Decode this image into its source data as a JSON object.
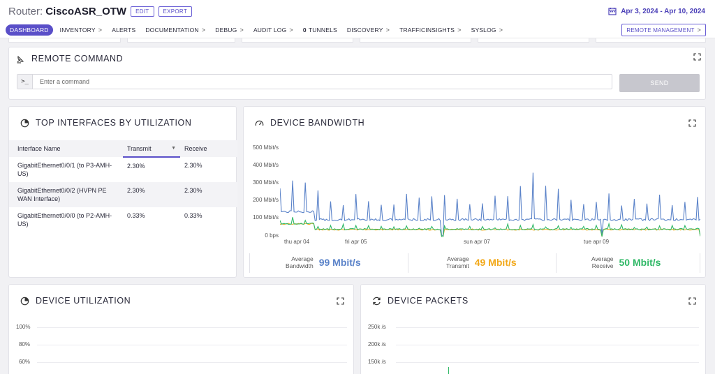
{
  "header": {
    "prefix": "Router:",
    "name": "CiscoASR_OTW",
    "edit_label": "EDIT",
    "export_label": "EXPORT",
    "date_range": "Apr 3, 2024 - Apr 10, 2024"
  },
  "nav": {
    "items": [
      {
        "label": "DASHBOARD"
      },
      {
        "label": "INVENTORY",
        "chevron": ">"
      },
      {
        "label": "ALERTS"
      },
      {
        "label": "DOCUMENTATION",
        "chevron": ">"
      },
      {
        "label": "DEBUG",
        "chevron": ">"
      },
      {
        "label": "AUDIT LOG",
        "chevron": ">"
      },
      {
        "count": "0",
        "label": "TUNNELS"
      },
      {
        "label": "DISCOVERY",
        "chevron": ">"
      },
      {
        "label": "TRAFFICINSIGHTS",
        "chevron": ">"
      },
      {
        "label": "SYSLOG",
        "chevron": ">"
      }
    ],
    "remote_management": "REMOTE MANAGEMENT",
    "remote_management_chevron": ">"
  },
  "remote_command": {
    "title": "REMOTE COMMAND",
    "prompt": ">_",
    "placeholder": "Enter a command",
    "send_label": "SEND"
  },
  "top_interfaces": {
    "title": "TOP INTERFACES BY UTILIZATION",
    "columns": [
      "Interface Name",
      "Transmit",
      "Receive"
    ],
    "rows": [
      {
        "name": "GigabitEthernet0/0/1 (to P3-AMH-US)",
        "transmit": "2.30%",
        "receive": "2.30%"
      },
      {
        "name": "GigabitEthernet0/0/2 (HVPN PE WAN Interface)",
        "transmit": "2.30%",
        "receive": "2.30%"
      },
      {
        "name": "GigabitEthernet0/0/0 (to P2-AMH-US)",
        "transmit": "0.33%",
        "receive": "0.33%"
      }
    ]
  },
  "device_bandwidth": {
    "title": "DEVICE BANDWIDTH",
    "stats": [
      {
        "label_line1": "Average",
        "label_line2": "Bandwidth",
        "value": "99 Mbit/s",
        "color": "#5b83c9"
      },
      {
        "label_line1": "Average",
        "label_line2": "Transmit",
        "value": "49 Mbit/s",
        "color": "#f2a818"
      },
      {
        "label_line1": "Average",
        "label_line2": "Receive",
        "value": "50 Mbit/s",
        "color": "#2fb866"
      }
    ]
  },
  "device_utilization": {
    "title": "DEVICE UTILIZATION",
    "y_ticks": [
      "100%",
      "80%",
      "60%"
    ]
  },
  "device_packets": {
    "title": "DEVICE PACKETS",
    "y_ticks": [
      "250k /s",
      "200k /s",
      "150k /s"
    ]
  },
  "chart_data": {
    "type": "line",
    "title": "DEVICE BANDWIDTH",
    "ylim": [
      0,
      500
    ],
    "y_ticks": [
      "0 bps",
      "100 Mbit/s",
      "200 Mbit/s",
      "300 Mbit/s",
      "400 Mbit/s",
      "500 Mbit/s"
    ],
    "x_ticks": [
      "thu apr 04",
      "fri apr 05",
      "sun apr 07",
      "tue apr 09"
    ],
    "grid": false,
    "colors": {
      "bandwidth": "#5b83c9",
      "transmit": "#f2a818",
      "receive": "#2fb866"
    },
    "series": [
      {
        "name": "Bandwidth",
        "baseline": 105,
        "early_level": 150,
        "spikes": [
          330,
          390,
          360,
          340,
          250,
          230,
          240,
          260,
          230,
          220,
          245,
          250,
          230,
          240,
          255,
          235,
          245,
          250,
          240
        ]
      },
      {
        "name": "Transmit",
        "baseline": 48,
        "early_level": 80
      },
      {
        "name": "Receive",
        "baseline": 50,
        "early_level": 82
      }
    ]
  }
}
